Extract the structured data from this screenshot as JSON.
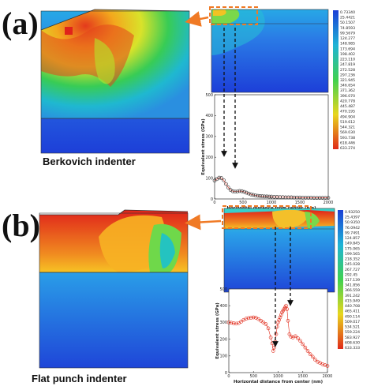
{
  "panels": [
    {
      "id": "a",
      "label": "(a)",
      "caption": "Berkovich indenter",
      "legend_values": [
        "0.73340",
        "25.4421",
        "50.1507",
        "74.8593",
        "99.5679",
        "124.277",
        "148.985",
        "173.694",
        "198.402",
        "223.110",
        "247.819",
        "272.528",
        "297.236",
        "321.945",
        "346.654",
        "371.362",
        "396.070",
        "420.778",
        "445.487",
        "470.195",
        "494.904",
        "519.612",
        "544.321",
        "569.030",
        "593.738",
        "618.446",
        "633.274"
      ],
      "chart_data": {
        "type": "line",
        "xlabel": "Horizontal distance from center (nm)",
        "ylabel": "Equivalent stress (GPa)",
        "xlim": [
          0,
          2000
        ],
        "ylim": [
          0,
          500
        ],
        "xticks": [
          "0",
          "500",
          "1000",
          "1500",
          "2000"
        ],
        "yticks": [
          "0",
          "100",
          "200",
          "300",
          "400",
          "500"
        ],
        "x": [
          0,
          40,
          80,
          120,
          160,
          200,
          240,
          280,
          320,
          360,
          400,
          440,
          480,
          520,
          560,
          600,
          640,
          680,
          720,
          760,
          800,
          840,
          880,
          920,
          960,
          1000,
          1050,
          1100,
          1150,
          1200,
          1250,
          1300,
          1350,
          1400,
          1450,
          1500,
          1550,
          1600,
          1650,
          1700,
          1750,
          1800,
          1850,
          1900,
          1950,
          2000
        ],
        "values": [
          88,
          95,
          102,
          100,
          90,
          72,
          55,
          43,
          37,
          35,
          36,
          38,
          37,
          34,
          30,
          26,
          22,
          19,
          17,
          15,
          14,
          13,
          12,
          12,
          11,
          11,
          10,
          10,
          9,
          9,
          8,
          8,
          8,
          7,
          7,
          7,
          6,
          6,
          6,
          6,
          5,
          5,
          5,
          5,
          5,
          5
        ]
      }
    },
    {
      "id": "b",
      "label": "(b)",
      "caption": "Flat punch indenter",
      "legend_values": [
        "0.93250",
        "25.4397",
        "50.9350",
        "76.0942",
        "99.7491",
        "124.857",
        "149.845",
        "175.065",
        "199.565",
        "218.352",
        "245.028",
        "267.727",
        "292.45",
        "317.139",
        "341.856",
        "366.559",
        "391.242",
        "415.949",
        "440.708",
        "465.411",
        "490.114",
        "509.017",
        "534.521",
        "559.224",
        "583.927",
        "608.630",
        "633.333"
      ],
      "chart_data": {
        "type": "line",
        "xlabel": "Horizontal distance from center (nm)",
        "ylabel": "Equivalent stress (GPa)",
        "xlim": [
          0,
          2000
        ],
        "ylim": [
          0,
          500
        ],
        "xticks": [
          "0",
          "500",
          "1000",
          "1500",
          "2000"
        ],
        "yticks": [
          "0",
          "100",
          "200",
          "300",
          "400",
          "500"
        ],
        "x": [
          0,
          50,
          100,
          150,
          200,
          250,
          300,
          350,
          400,
          450,
          500,
          550,
          600,
          650,
          700,
          750,
          800,
          850,
          880,
          900,
          920,
          940,
          960,
          980,
          1000,
          1020,
          1040,
          1060,
          1080,
          1100,
          1120,
          1140,
          1160,
          1180,
          1200,
          1230,
          1260,
          1300,
          1350,
          1400,
          1450,
          1500,
          1550,
          1600,
          1650,
          1700,
          1750,
          1800,
          1850,
          1900,
          1950,
          2000
        ],
        "values": [
          300,
          298,
          295,
          293,
          296,
          305,
          315,
          322,
          326,
          328,
          330,
          328,
          320,
          310,
          300,
          290,
          265,
          210,
          175,
          130,
          150,
          185,
          230,
          275,
          300,
          315,
          330,
          345,
          360,
          370,
          380,
          390,
          400,
          380,
          310,
          230,
          215,
          210,
          218,
          205,
          190,
          170,
          150,
          130,
          110,
          95,
          78,
          65,
          58,
          50,
          45,
          40
        ]
      }
    }
  ]
}
